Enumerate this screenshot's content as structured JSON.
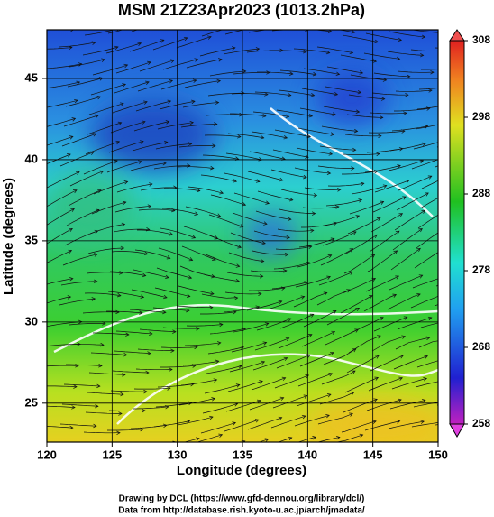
{
  "chart_data": {
    "type": "map",
    "title": "MSM 21Z23Apr2023 (1013.2hPa)",
    "x_label": "Longitude (degrees)",
    "y_label": "Latitude  (degrees)",
    "xlim": [
      120,
      150
    ],
    "ylim": [
      22.6,
      48
    ],
    "xticks": [
      120,
      125,
      130,
      135,
      140,
      145,
      150
    ],
    "yticks": [
      25,
      30,
      35,
      40,
      45
    ],
    "grid": true,
    "colorbar": {
      "lim": [
        258,
        308
      ],
      "ticks": [
        258,
        268,
        278,
        288,
        298,
        308
      ]
    }
  },
  "footer": {
    "line1": "Drawing by DCL (https://www.gfd-dennou.org/library/dcl/)",
    "line2": "Data from http://database.rish.kyoto-u.ac.jp/arch/jmadata/"
  }
}
